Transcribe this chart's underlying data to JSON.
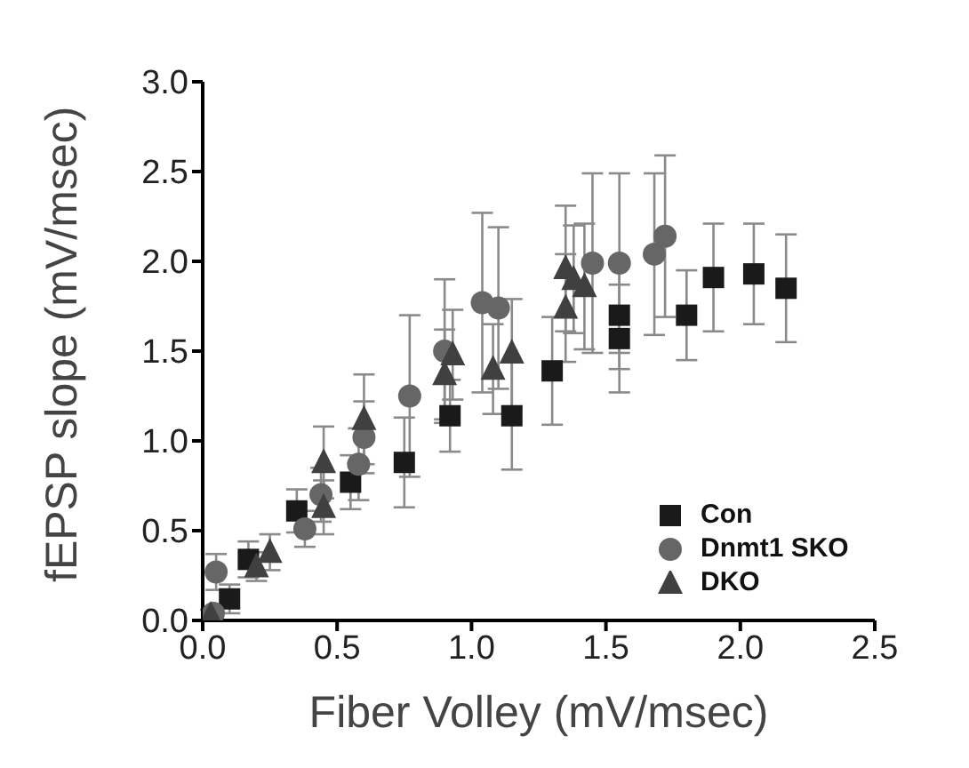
{
  "chart_data": {
    "type": "scatter",
    "xlabel": "Fiber Volley (mV/msec)",
    "ylabel": "fEPSP slope (mV/msec)",
    "xlim": [
      0,
      2.5
    ],
    "xticks": [
      {
        "value": 0,
        "label": "0.0"
      },
      {
        "value": 0.5,
        "label": "0.5"
      },
      {
        "value": 1,
        "label": "1.0"
      },
      {
        "value": 1.5,
        "label": "1.5"
      },
      {
        "value": 2,
        "label": "2.0"
      },
      {
        "value": 2.5,
        "label": "2.5"
      }
    ],
    "ylim": [
      0,
      3
    ],
    "yticks": [
      {
        "value": 0,
        "label": "0.0"
      },
      {
        "value": 0.5,
        "label": "0.5"
      },
      {
        "value": 1,
        "label": "1.0"
      },
      {
        "value": 1.5,
        "label": "1.5"
      },
      {
        "value": 2,
        "label": "2.0"
      },
      {
        "value": 2.5,
        "label": "2.5"
      },
      {
        "value": 3,
        "label": "3.0"
      }
    ],
    "legend": "bottom right",
    "grid": false,
    "series": [
      {
        "name": "Con",
        "color": "#1a1a1a",
        "marker": "square",
        "x": [
          0.1,
          0.17,
          0.35,
          0.55,
          0.75,
          0.92,
          1.15,
          1.3,
          1.55,
          1.55,
          1.8,
          1.9,
          2.05,
          2.17
        ],
        "values": [
          0.12,
          0.34,
          0.61,
          0.77,
          0.88,
          1.14,
          1.14,
          1.39,
          1.7,
          1.57,
          1.7,
          1.91,
          1.93,
          1.85
        ],
        "errors": [
          0.08,
          0.1,
          0.12,
          0.15,
          0.25,
          0.2,
          0.3,
          0.3,
          0.3,
          0.3,
          0.25,
          0.3,
          0.28,
          0.3
        ]
      },
      {
        "name": "Dnmt1 SKO",
        "color": "#666666",
        "marker": "circle",
        "x": [
          0.04,
          0.05,
          0.38,
          0.44,
          0.58,
          0.6,
          0.77,
          0.9,
          1.04,
          1.1,
          1.45,
          1.55,
          1.68,
          1.72
        ],
        "values": [
          0.04,
          0.27,
          0.51,
          0.7,
          0.87,
          1.02,
          1.25,
          1.5,
          1.77,
          1.74,
          1.99,
          1.99,
          2.04,
          2.14
        ],
        "errors": [
          0.03,
          0.1,
          0.1,
          0.15,
          0.2,
          0.2,
          0.45,
          0.4,
          0.5,
          0.45,
          0.5,
          0.5,
          0.45,
          0.45
        ]
      },
      {
        "name": "DKO",
        "color": "#404040",
        "marker": "triangle",
        "x": [
          0.03,
          0.2,
          0.25,
          0.45,
          0.45,
          0.6,
          0.9,
          0.93,
          1.08,
          1.15,
          1.35,
          1.35,
          1.38,
          1.42
        ],
        "values": [
          0.03,
          0.3,
          0.38,
          0.63,
          0.88,
          1.12,
          1.37,
          1.48,
          1.4,
          1.49,
          1.74,
          1.96,
          1.9,
          1.86
        ],
        "errors": [
          0.03,
          0.08,
          0.1,
          0.15,
          0.2,
          0.25,
          0.25,
          0.25,
          0.25,
          0.3,
          0.3,
          0.35,
          0.3,
          0.35
        ]
      }
    ]
  }
}
